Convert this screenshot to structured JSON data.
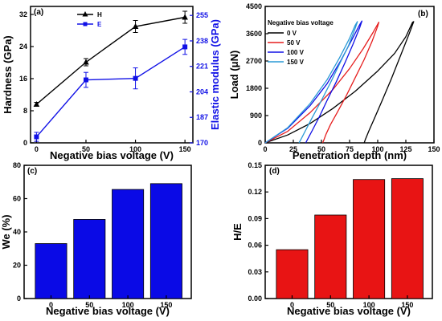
{
  "colors": {
    "black": "#000000",
    "blue": "#1010e6",
    "red": "#e61e1e",
    "green": "#1ea03c",
    "cyan": "#2a9ad6",
    "bar_blue": "#0a0ae6",
    "bar_red": "#e81414"
  },
  "chart_data": [
    {
      "panel": "(a)",
      "type": "line",
      "xlabel": "Negative bias voltage (V)",
      "ylabel": "Hardness (GPa)",
      "y2label": "Elastic modulus (GPa)",
      "xlim": [
        -6,
        158
      ],
      "ylim": [
        0,
        34
      ],
      "y2lim": [
        170,
        261
      ],
      "xticks": [
        "0",
        "50",
        "100",
        "150"
      ],
      "yticks": [
        "0",
        "8",
        "16",
        "24",
        "32"
      ],
      "y2ticks": [
        "170",
        "187",
        "204",
        "221",
        "238",
        "255"
      ],
      "series": [
        {
          "name": "H",
          "axis": "left",
          "color": "#000000",
          "marker": "triangle",
          "x": [
            0,
            50,
            100,
            150
          ],
          "y": [
            9.6,
            20.1,
            29.0,
            31.3
          ],
          "err": [
            0.5,
            0.9,
            1.5,
            1.5
          ]
        },
        {
          "name": "E",
          "axis": "right",
          "color": "#1010e6",
          "marker": "square",
          "x": [
            0,
            50,
            100,
            150
          ],
          "y": [
            174,
            212,
            213,
            234
          ],
          "err": [
            3,
            5,
            7,
            5
          ]
        }
      ]
    },
    {
      "panel": "(b)",
      "type": "line",
      "xlabel": "Penetration depth (nm)",
      "ylabel": "Load (μN)",
      "xlim": [
        0,
        150
      ],
      "ylim": [
        0,
        4500
      ],
      "xticks": [
        "0",
        "25",
        "50",
        "75",
        "100",
        "125",
        "150"
      ],
      "yticks": [
        "0",
        "900",
        "1800",
        "2700",
        "3600",
        "4500"
      ],
      "legend_title": "Negative bias voltage",
      "series": [
        {
          "name": "0 V",
          "color": "#000000",
          "x": [
            0,
            20,
            40,
            60,
            80,
            100,
            115,
            125,
            131,
            132,
            128,
            120,
            112,
            104,
            97,
            92,
            89,
            88
          ],
          "y": [
            0,
            260,
            640,
            1130,
            1700,
            2370,
            2950,
            3500,
            3980,
            4000,
            3600,
            2850,
            2100,
            1400,
            800,
            380,
            110,
            0
          ]
        },
        {
          "name": "50 V",
          "color": "#e61e1e",
          "x": [
            0,
            20,
            40,
            60,
            75,
            87,
            96,
            101,
            100,
            95,
            88,
            80,
            72,
            64,
            58,
            54,
            52,
            51
          ],
          "y": [
            0,
            380,
            1000,
            1750,
            2450,
            3100,
            3650,
            3980,
            3850,
            3350,
            2750,
            2150,
            1550,
            1000,
            600,
            280,
            80,
            0
          ]
        },
        {
          "name": "100 V",
          "color": "#1010e6",
          "x": [
            0,
            20,
            40,
            55,
            67,
            77,
            84,
            86,
            84,
            78,
            71,
            63,
            55,
            48,
            42,
            38,
            36
          ],
          "y": [
            0,
            480,
            1230,
            1950,
            2700,
            3400,
            3900,
            4020,
            3800,
            3250,
            2650,
            2000,
            1400,
            850,
            420,
            140,
            0
          ]
        },
        {
          "name": "150 V",
          "color": "#2a9ad6",
          "x": [
            0,
            20,
            40,
            55,
            66,
            75,
            80,
            82,
            80,
            74,
            66,
            58,
            50,
            42,
            36,
            32,
            30
          ],
          "y": [
            0,
            500,
            1300,
            2080,
            2800,
            3450,
            3880,
            4000,
            3780,
            3200,
            2600,
            1980,
            1400,
            850,
            420,
            130,
            0
          ]
        }
      ]
    },
    {
      "panel": "(c)",
      "type": "bar",
      "xlabel": "Negative bias voltage (V)",
      "ylabel": "We (%)",
      "categories": [
        "0",
        "50",
        "100",
        "150"
      ],
      "values": [
        33,
        47.5,
        65.5,
        69
      ],
      "ylim": [
        0,
        80
      ],
      "yticks": [
        "0",
        "20",
        "40",
        "60",
        "80"
      ],
      "color": "#0a0ae6"
    },
    {
      "panel": "(d)",
      "type": "bar",
      "xlabel": "Negative bias voltage (V)",
      "ylabel": "H/E",
      "categories": [
        "0",
        "50",
        "100",
        "150"
      ],
      "values": [
        0.055,
        0.094,
        0.134,
        0.135
      ],
      "ylim": [
        0,
        0.15
      ],
      "yticks": [
        "0.00",
        "0.03",
        "0.06",
        "0.09",
        "0.12",
        "0.15"
      ],
      "color": "#e81414"
    }
  ]
}
